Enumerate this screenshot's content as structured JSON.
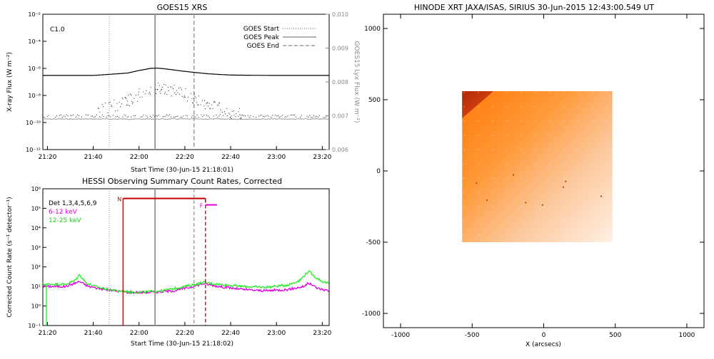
{
  "chart_data": [
    {
      "type": "line",
      "title": "GOES15 XRS",
      "xlabel": "Start Time (30-Jun-15 21:18:01)",
      "ylabel": "X-ray Flux (W m⁻²)",
      "y2label": "GOES15 Lyx Flux (W m⁻²)",
      "xticks": [
        "21:20",
        "21:40",
        "22:00",
        "22:20",
        "22:40",
        "23:00",
        "23:20"
      ],
      "yticks": [
        "10⁻¹²",
        "10⁻¹⁰",
        "10⁻⁸",
        "10⁻⁶",
        "10⁻⁴",
        "10⁻²"
      ],
      "y2ticks": [
        "0.006",
        "0.007",
        "0.008",
        "0.009",
        "0.010"
      ],
      "ylim": [
        1e-12,
        0.01
      ],
      "y2lim": [
        0.006,
        0.01
      ],
      "scale": "log",
      "annotation": "C1.0",
      "legend": [
        "GOES Start",
        "GOES Peak",
        "GOES End"
      ],
      "legend_position": "top-right",
      "vlines": [
        {
          "name": "GOES Start",
          "time": "21:47",
          "style": "dotted"
        },
        {
          "name": "GOES Peak",
          "time": "22:07",
          "style": "solid"
        },
        {
          "name": "GOES End",
          "time": "22:24",
          "style": "dashed"
        }
      ],
      "series": [
        {
          "name": "long",
          "x": [
            "21:18",
            "21:40",
            "21:55",
            "22:00",
            "22:05",
            "22:08",
            "22:12",
            "22:20",
            "22:30",
            "22:40",
            "23:00",
            "23:23"
          ],
          "values": [
            3e-07,
            3e-07,
            4.5e-07,
            7e-07,
            1e-06,
            1.05e-06,
            9e-07,
            6e-07,
            4e-07,
            3.2e-07,
            3e-07,
            3e-07
          ]
        },
        {
          "name": "short",
          "x": [
            "21:45",
            "21:55",
            "22:00",
            "22:05",
            "22:08",
            "22:12",
            "22:20",
            "22:30",
            "22:40"
          ],
          "values": [
            1e-09,
            4e-09,
            1.2e-08,
            3e-08,
            4e-08,
            3e-08,
            1.2e-08,
            2e-09,
            5e-10
          ]
        },
        {
          "name": "lyman",
          "x": [
            "21:18",
            "23:23"
          ],
          "values": [
            1.8e-10,
            1.8e-10
          ]
        }
      ]
    },
    {
      "type": "line",
      "title": "HESSI Observing Summary Count Rates, Corrected",
      "xlabel": "Start Time (30-Jun-15 21:18:02)",
      "ylabel": "Corrected Count Rate (s⁻¹ detector⁻¹)",
      "xticks": [
        "21:20",
        "21:40",
        "22:00",
        "22:20",
        "22:40",
        "23:00",
        "23:20"
      ],
      "yticks": [
        "10⁻¹",
        "10⁰",
        "10¹",
        "10²",
        "10³",
        "10⁴",
        "10⁵",
        "10⁶"
      ],
      "ylim": [
        0.1,
        1000000.0
      ],
      "scale": "log",
      "legend": [
        "Det 1,3,4,5,6,9",
        "6-12 keV",
        "12-25 keV"
      ],
      "legend_position": "top-left",
      "markers": [
        {
          "label": "N",
          "start": "21:53",
          "end": "22:29",
          "color": "#c00000"
        },
        {
          "label": "F",
          "start": "22:29",
          "end": "22:34",
          "color": "#e000e0"
        }
      ],
      "vlines": [
        {
          "time": "21:47",
          "style": "dotted",
          "color": "#888888"
        },
        {
          "time": "21:53",
          "style": "solid",
          "color": "#c00000"
        },
        {
          "time": "22:07",
          "style": "solid",
          "color": "#999999"
        },
        {
          "time": "22:24",
          "style": "dashed",
          "color": "#999999"
        },
        {
          "time": "22:29",
          "style": "dashed",
          "color": "#c00000"
        }
      ],
      "series": [
        {
          "name": "6-12 keV",
          "color": "#e000e0",
          "x": [
            "21:18",
            "21:28",
            "21:34",
            "21:38",
            "21:45",
            "21:55",
            "22:05",
            "22:15",
            "22:22",
            "22:28",
            "22:35",
            "22:45",
            "22:55",
            "23:05",
            "23:12",
            "23:14",
            "23:18",
            "23:23"
          ],
          "values": [
            10,
            10,
            18,
            10,
            7,
            5,
            5,
            6,
            9,
            14,
            10,
            7,
            6,
            7,
            10,
            15,
            8,
            6
          ]
        },
        {
          "name": "12-25 keV",
          "color": "#22ee22",
          "x": [
            "21:18",
            "21:28",
            "21:32",
            "21:34",
            "21:37",
            "21:42",
            "21:50",
            "22:00",
            "22:10",
            "22:20",
            "22:28",
            "22:35",
            "22:45",
            "22:55",
            "23:05",
            "23:10",
            "23:14",
            "23:17",
            "23:20",
            "23:23"
          ],
          "values": [
            13,
            13,
            20,
            40,
            15,
            9,
            6,
            5,
            6,
            10,
            16,
            13,
            10,
            9,
            12,
            20,
            60,
            30,
            18,
            14
          ]
        }
      ]
    },
    {
      "type": "heatmap",
      "title": "HINODE XRT JAXA/ISAS, SIRIUS 30-Jun-2015 12:43:00.549 UT",
      "xlabel": "X (arcsecs)",
      "ylabel": "",
      "xticks": [
        "-1000",
        "-500",
        "0",
        "500",
        "1000"
      ],
      "yticks": [
        "-1000",
        "-500",
        "0",
        "500",
        "1000"
      ],
      "xlim": [
        -1120,
        1120
      ],
      "ylim": [
        -1100,
        1100
      ],
      "image_extent": {
        "x": [
          -570,
          480
        ],
        "y": [
          -500,
          560
        ]
      }
    }
  ]
}
